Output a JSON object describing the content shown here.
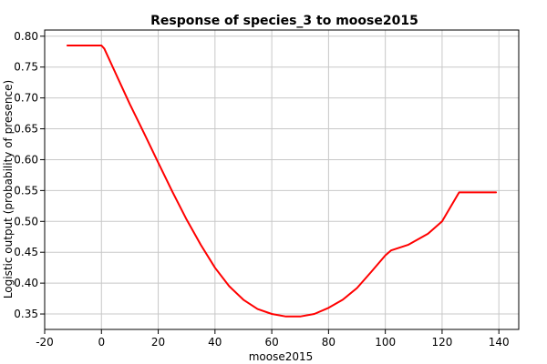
{
  "chart_data": {
    "type": "line",
    "title": "Response of species_3 to moose2015",
    "xlabel": "moose2015",
    "ylabel": "Logistic output (probability of presence)",
    "xlim": [
      -20,
      147
    ],
    "ylim": [
      0.325,
      0.81
    ],
    "x_ticks": [
      -20,
      0,
      20,
      40,
      60,
      80,
      100,
      120,
      140
    ],
    "x_tick_labels": [
      "-20",
      "0",
      "20",
      "40",
      "60",
      "80",
      "100",
      "120",
      "140"
    ],
    "y_ticks": [
      0.35,
      0.4,
      0.45,
      0.5,
      0.55,
      0.6,
      0.65,
      0.7,
      0.75,
      0.8
    ],
    "y_tick_labels": [
      "0.35",
      "0.40",
      "0.45",
      "0.50",
      "0.55",
      "0.60",
      "0.65",
      "0.70",
      "0.75",
      "0.80"
    ],
    "grid": true,
    "series": [
      {
        "color": "#ff0000",
        "x": [
          -12,
          0,
          1,
          5,
          10,
          15,
          20,
          25,
          30,
          35,
          40,
          45,
          50,
          55,
          60,
          65,
          70,
          75,
          80,
          85,
          90,
          95,
          100,
          102,
          108,
          115,
          120,
          126,
          139
        ],
        "y": [
          0.785,
          0.785,
          0.78,
          0.74,
          0.69,
          0.643,
          0.595,
          0.548,
          0.503,
          0.462,
          0.425,
          0.395,
          0.373,
          0.358,
          0.35,
          0.346,
          0.346,
          0.35,
          0.36,
          0.373,
          0.392,
          0.418,
          0.445,
          0.453,
          0.462,
          0.48,
          0.5,
          0.547,
          0.547
        ]
      }
    ]
  }
}
